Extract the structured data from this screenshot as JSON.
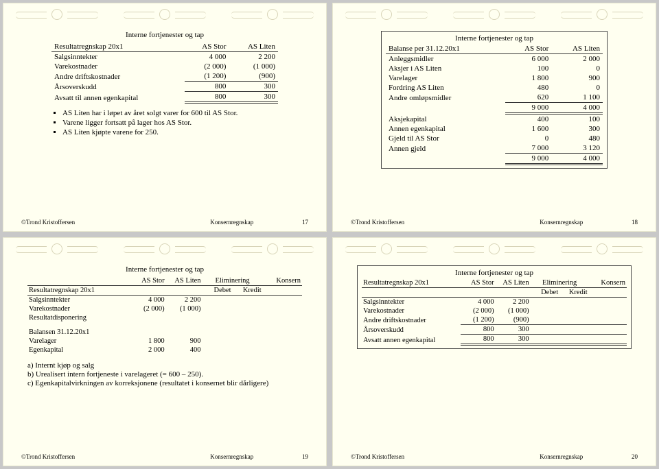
{
  "common": {
    "section_title": "Interne fortjenester og tap",
    "footer_author": "©Trond Kristoffersen",
    "footer_center": "Konsernregnskap"
  },
  "slide17": {
    "page_num": "17",
    "table": {
      "header": [
        "Resultatregnskap 20x1",
        "AS Stor",
        "AS Liten"
      ],
      "rows": [
        {
          "label": "Salgsinntekter",
          "c1": "4 000",
          "c2": "2 200",
          "underline": false
        },
        {
          "label": "Varekostnader",
          "c1": "(2 000)",
          "c2": "(1 000)",
          "underline": false
        },
        {
          "label": "Andre driftskostnader",
          "c1": "(1 200)",
          "c2": "(900)",
          "underline": true
        },
        {
          "label": "Årsoverskudd",
          "c1": "800",
          "c2": "300",
          "underline": true
        },
        {
          "label": "Avsatt til annen egenkapital",
          "c1": "800",
          "c2": "300",
          "double": true
        }
      ]
    },
    "bullets": [
      "AS Liten har i løpet av året solgt varer for 600 til AS Stor.",
      "Varene ligger fortsatt på lager hos AS Stor.",
      "AS Liten kjøpte varene for 250."
    ]
  },
  "slide18": {
    "page_num": "18",
    "table": {
      "header": [
        "Balanse per 31.12.20x1",
        "AS Stor",
        "AS Liten"
      ],
      "rows": [
        {
          "label": "Anleggsmidler",
          "c1": "6 000",
          "c2": "2 000"
        },
        {
          "label": "Aksjer i AS Liten",
          "c1": "100",
          "c2": "0"
        },
        {
          "label": "Varelager",
          "c1": "1 800",
          "c2": "900"
        },
        {
          "label": "Fordring AS Liten",
          "c1": "480",
          "c2": "0"
        },
        {
          "label": "Andre omløpsmidler",
          "c1": "620",
          "c2": "1 100",
          "underline": true
        },
        {
          "label": "",
          "c1": "9 000",
          "c2": "4 000",
          "double": true
        },
        {
          "label": "Aksjekapital",
          "c1": "400",
          "c2": "100"
        },
        {
          "label": "Annen egenkapital",
          "c1": "1 600",
          "c2": "300"
        },
        {
          "label": "Gjeld til AS Stor",
          "c1": "0",
          "c2": "480"
        },
        {
          "label": "Annen gjeld",
          "c1": "7 000",
          "c2": "3 120",
          "underline": true
        },
        {
          "label": "",
          "c1": "9 000",
          "c2": "4 000",
          "double": true
        }
      ]
    }
  },
  "slide19": {
    "page_num": "19",
    "table1": {
      "col_header_top": [
        "",
        "AS Stor",
        "AS Liten",
        "Eliminering",
        "Konsern"
      ],
      "col_header_sub": [
        "Resultatregnskap 20x1",
        "",
        "",
        "Debet",
        "Kredit",
        ""
      ],
      "rows": [
        {
          "label": "Salgsinntekter",
          "c": [
            "4 000",
            "2 200",
            "",
            "",
            ""
          ]
        },
        {
          "label": "Varekostnader",
          "c": [
            "(2 000)",
            "(1 000)",
            "",
            "",
            ""
          ]
        },
        {
          "label": "Resultatdisponering",
          "c": [
            "",
            "",
            "",
            "",
            ""
          ]
        }
      ]
    },
    "table2": {
      "header": "Balansen 31.12.20x1",
      "rows": [
        {
          "label": "Varelager",
          "c": [
            "1 800",
            "900",
            "",
            "",
            ""
          ]
        },
        {
          "label": "Egenkapital",
          "c": [
            "2 000",
            "400",
            "",
            "",
            ""
          ]
        }
      ]
    },
    "notes": [
      "a)   Internt kjøp og salg",
      "b)   Urealisert intern fortjeneste i varelageret (= 600 – 250).",
      "c)   Egenkapitalvirkningen av korreksjonene (resultatet i konsernet blir dårligere)"
    ]
  },
  "slide20": {
    "page_num": "20",
    "table": {
      "col_header_top": [
        "Resultatregnskap 20x1",
        "AS Stor",
        "AS Liten",
        "Eliminering",
        "Konsern"
      ],
      "col_header_sub": [
        "",
        "",
        "",
        "Debet",
        "Kredit",
        ""
      ],
      "rows": [
        {
          "label": "Salgsinntekter",
          "c": [
            "4 000",
            "2 200",
            "",
            "",
            ""
          ]
        },
        {
          "label": "Varekostnader",
          "c": [
            "(2 000)",
            "(1 000)",
            "",
            "",
            ""
          ]
        },
        {
          "label": "Andre driftskostnader",
          "c": [
            "(1 200)",
            "(900)",
            "",
            "",
            ""
          ],
          "underline": true
        },
        {
          "label": "Årsoverskudd",
          "c": [
            "800",
            "300",
            "",
            "",
            ""
          ],
          "underline": true
        },
        {
          "label": "Avsatt annen egenkapital",
          "c": [
            "800",
            "300",
            "",
            "",
            ""
          ],
          "double": true
        }
      ]
    }
  }
}
